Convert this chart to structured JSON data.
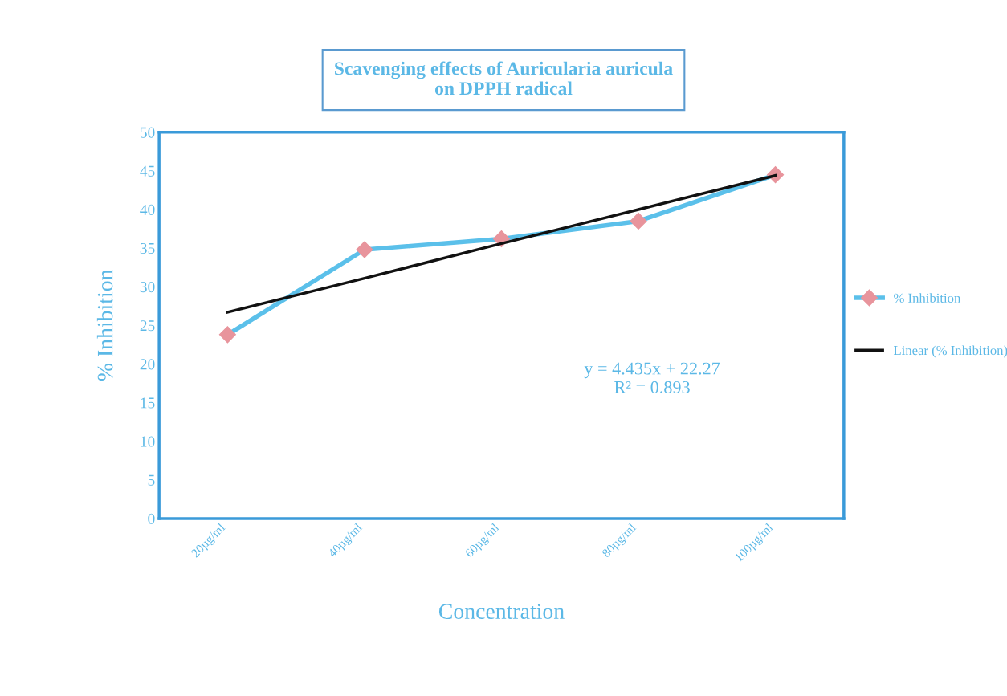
{
  "chart_data": {
    "type": "line",
    "title": "Scavenging effects of Auricularia auricula\non DPPH radical",
    "xlabel": "Concentration",
    "ylabel": "% Inhibition",
    "categories": [
      "20µg/ml",
      "40µg/ml",
      "60µg/ml",
      "80µg/ml",
      "100µg/ml"
    ],
    "series": [
      {
        "name": "% Inhibition",
        "color": "#5bc0ea",
        "values": [
          23.8,
          34.8,
          36.2,
          38.5,
          44.5
        ],
        "marker": "diamond"
      },
      {
        "name": "Linear (% Inhibition)",
        "color": "#111111",
        "values": [
          26.7,
          31.1,
          35.6,
          40.0,
          44.4
        ],
        "marker": "none"
      }
    ],
    "ylim": [
      0,
      50
    ],
    "yticks": [
      0,
      5,
      10,
      15,
      20,
      25,
      30,
      35,
      40,
      45,
      50
    ],
    "annotations": [
      "y = 4.435x + 22.27\nR² = 0.893"
    ],
    "grid": false,
    "legend": "right",
    "line_style": "solid"
  }
}
